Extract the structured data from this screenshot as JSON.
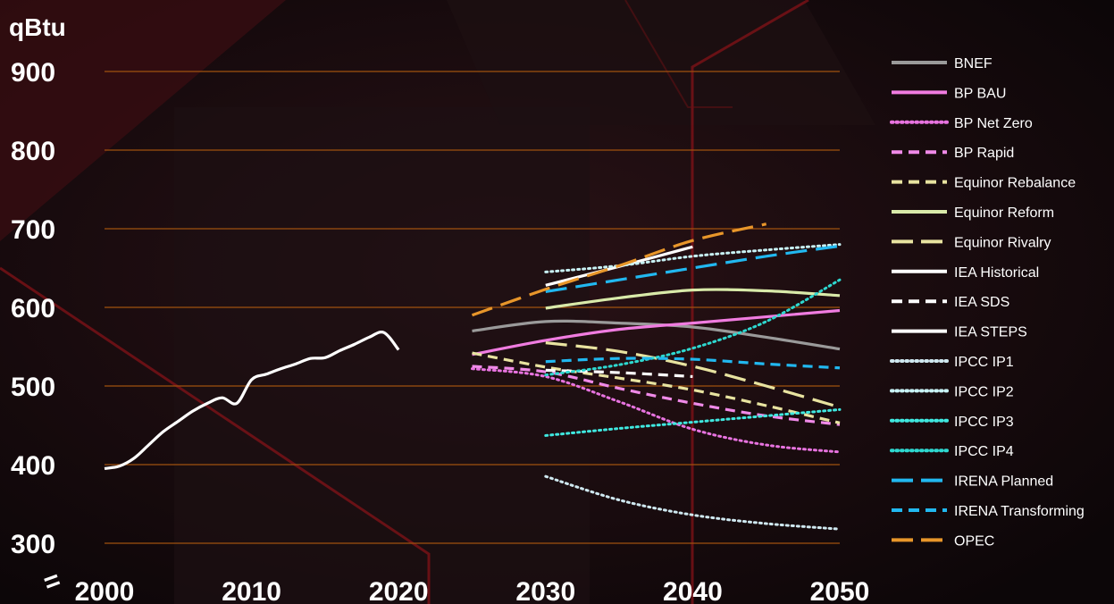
{
  "chart_data": {
    "type": "line",
    "unit_label": "qBtu",
    "xlim": [
      2000,
      2050
    ],
    "ylim": [
      300,
      900
    ],
    "x_ticks": [
      "2000",
      "2010",
      "2020",
      "2030",
      "2040",
      "2050"
    ],
    "y_ticks": [
      "900",
      "800",
      "700",
      "600",
      "500",
      "400",
      "300"
    ],
    "grid": true,
    "axis_break_mark": "=",
    "legend_position": "right",
    "colors": {
      "background": "#120a0c",
      "gridline": "#a0520f",
      "text": "#ffffff"
    },
    "series": [
      {
        "name": "BNEF",
        "color": "#9a9a9a",
        "style": "solid",
        "x": [
          2025,
          2030,
          2035,
          2040,
          2045,
          2050
        ],
        "y": [
          570,
          582,
          580,
          575,
          562,
          547
        ]
      },
      {
        "name": "BP BAU",
        "color": "#f07ce0",
        "style": "solid",
        "x": [
          2025,
          2030,
          2035,
          2040,
          2045,
          2050
        ],
        "y": [
          540,
          558,
          572,
          580,
          588,
          596
        ]
      },
      {
        "name": "BP Net Zero",
        "color": "#e873e0",
        "style": "dotted",
        "x": [
          2025,
          2030,
          2035,
          2040,
          2045,
          2050
        ],
        "y": [
          522,
          512,
          480,
          445,
          425,
          416
        ]
      },
      {
        "name": "BP Rapid",
        "color": "#f08ae8",
        "style": "dashed",
        "x": [
          2025,
          2030,
          2035,
          2040,
          2045,
          2050
        ],
        "y": [
          525,
          518,
          497,
          478,
          462,
          451
        ]
      },
      {
        "name": "Equinor Rebalance",
        "color": "#e8e3a0",
        "style": "dashed",
        "x": [
          2025,
          2030,
          2035,
          2040,
          2045,
          2050
        ],
        "y": [
          542,
          524,
          510,
          495,
          475,
          453
        ]
      },
      {
        "name": "Equinor Reform",
        "color": "#d9eaa9",
        "style": "solid",
        "x": [
          2030,
          2035,
          2040,
          2045,
          2050
        ],
        "y": [
          599,
          612,
          622,
          621,
          615
        ]
      },
      {
        "name": "Equinor Rivalry",
        "color": "#e8e3a0",
        "style": "longdash",
        "x": [
          2030,
          2035,
          2040,
          2045,
          2050
        ],
        "y": [
          555,
          544,
          525,
          500,
          473
        ]
      },
      {
        "name": "IEA Historical",
        "color": "#ffffff",
        "style": "solid",
        "x": [
          2000,
          2001,
          2002,
          2003,
          2004,
          2005,
          2006,
          2007,
          2008,
          2009,
          2010,
          2011,
          2012,
          2013,
          2014,
          2015,
          2016,
          2017,
          2018,
          2019,
          2020
        ],
        "y": [
          395,
          398,
          408,
          425,
          442,
          455,
          468,
          478,
          485,
          478,
          508,
          515,
          522,
          528,
          535,
          536,
          545,
          553,
          562,
          568,
          546
        ]
      },
      {
        "name": "IEA SDS",
        "color": "#ffffff",
        "style": "dashed",
        "x": [
          2030,
          2035,
          2040
        ],
        "y": [
          520,
          517,
          512
        ]
      },
      {
        "name": "IEA STEPS",
        "color": "#ffffff",
        "style": "solid",
        "x": [
          2030,
          2035,
          2040
        ],
        "y": [
          628,
          652,
          677
        ]
      },
      {
        "name": "IPCC IP1",
        "color": "#cfe8f0",
        "style": "dotted",
        "x": [
          2030,
          2035,
          2040,
          2045,
          2050
        ],
        "y": [
          385,
          355,
          336,
          325,
          318
        ]
      },
      {
        "name": "IPCC IP2",
        "color": "#c8f2f5",
        "style": "dotted",
        "x": [
          2030,
          2035,
          2040,
          2045,
          2050
        ],
        "y": [
          645,
          653,
          665,
          673,
          680
        ]
      },
      {
        "name": "IPCC IP3",
        "color": "#3fe8e0",
        "style": "dotted",
        "x": [
          2030,
          2035,
          2040,
          2045,
          2050
        ],
        "y": [
          437,
          446,
          454,
          462,
          470
        ]
      },
      {
        "name": "IPCC IP4",
        "color": "#2ed8d0",
        "style": "dotted",
        "x": [
          2030,
          2035,
          2040,
          2045,
          2050
        ],
        "y": [
          514,
          527,
          548,
          582,
          635
        ]
      },
      {
        "name": "IRENA Planned",
        "color": "#21b8f0",
        "style": "longdash",
        "x": [
          2030,
          2035,
          2040,
          2045,
          2050
        ],
        "y": [
          620,
          635,
          650,
          665,
          678
        ]
      },
      {
        "name": "IRENA Transforming",
        "color": "#21b8f0",
        "style": "dashed",
        "x": [
          2030,
          2035,
          2040,
          2045,
          2050
        ],
        "y": [
          531,
          535,
          534,
          528,
          523
        ]
      },
      {
        "name": "OPEC",
        "color": "#e8962a",
        "style": "longdash",
        "x": [
          2025,
          2030,
          2035,
          2040,
          2045
        ],
        "y": [
          590,
          623,
          653,
          685,
          706
        ]
      }
    ]
  }
}
